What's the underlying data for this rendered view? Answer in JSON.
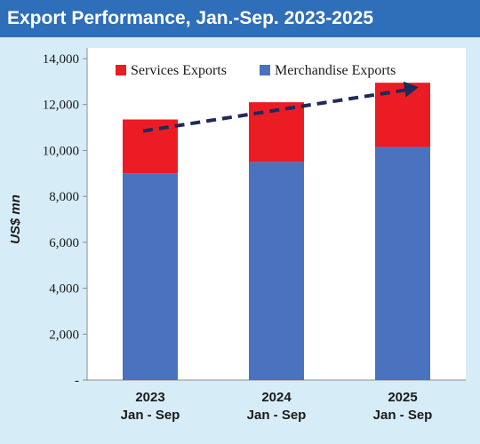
{
  "title": "Export Performance, Jan.-Sep. 2023-2025",
  "colors": {
    "title_bg": "#2f6eb8",
    "panel_bg": "#d6edf8",
    "services": "#ec1c24",
    "merchandise": "#4b72be",
    "trend": "#1f2a5a"
  },
  "chart_data": {
    "type": "bar",
    "stacked": true,
    "categories": [
      [
        "2023",
        "Jan - Sep"
      ],
      [
        "2024",
        "Jan - Sep"
      ],
      [
        "2025",
        "Jan - Sep"
      ]
    ],
    "series": [
      {
        "name": "Merchandise Exports",
        "values": [
          9000,
          9500,
          10150
        ]
      },
      {
        "name": "Services Exports",
        "values": [
          2350,
          2600,
          2800
        ]
      }
    ],
    "ylabel": "US$ mn",
    "ylim": [
      0,
      14000
    ],
    "yticks": [
      0,
      2000,
      4000,
      6000,
      8000,
      10000,
      12000,
      14000
    ],
    "ytick_labels": [
      "-",
      "2,000",
      "4,000",
      "6,000",
      "8,000",
      "10,000",
      "12,000",
      "14,000"
    ],
    "legend_placement": "top",
    "grid": false,
    "trend_arrow": true
  }
}
